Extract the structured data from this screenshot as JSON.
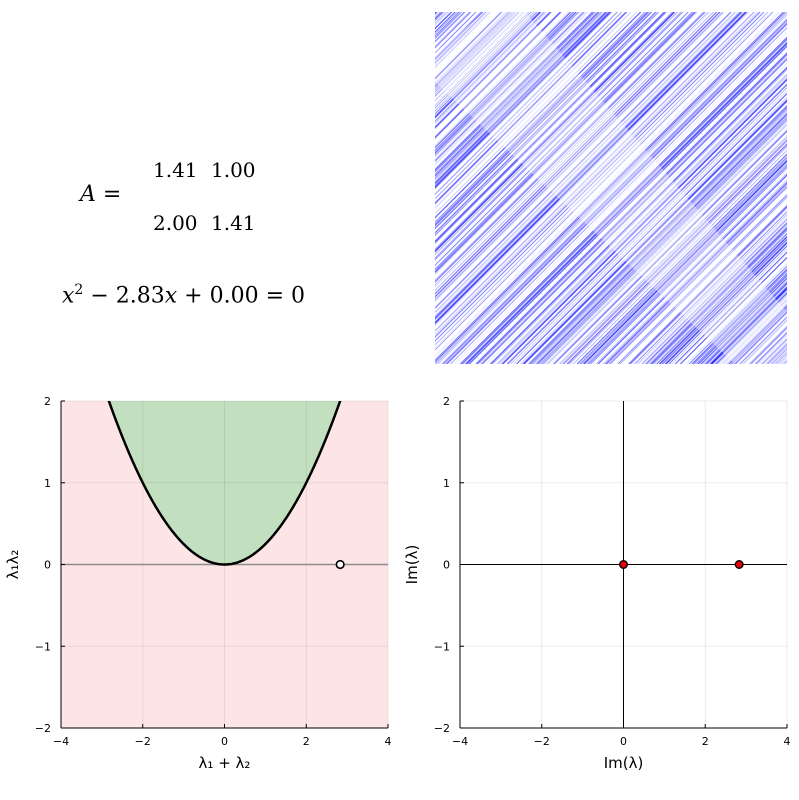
{
  "matrix": {
    "name": "A",
    "equals": "=",
    "rows": [
      [
        "1.41",
        "1.00"
      ],
      [
        "2.00",
        "1.41"
      ]
    ]
  },
  "equation": {
    "var": "x",
    "exp": "2",
    "middle": " − 2.83",
    "end": " + 0.00 = 0"
  },
  "colors": {
    "stripe": "#0000ff",
    "stable_region": "#c2e0c0",
    "unstable_region": "#fde5e6",
    "curve": "#000000",
    "eigen_point": "#e8000b",
    "axis_line": "#8c8c8c"
  },
  "chart_data": [
    {
      "type": "scatter",
      "title": "",
      "xlabel": "λ₁ + λ₂",
      "ylabel": "λ₁λ₂",
      "xlim": [
        -4,
        4
      ],
      "ylim": [
        -2,
        2
      ],
      "xticks": [
        -4,
        -2,
        0,
        2,
        4
      ],
      "yticks": [
        -2,
        -1,
        0,
        1,
        2
      ],
      "grid": true,
      "curve": {
        "equation": "y = x^2 / 4",
        "x_range": [
          -2.83,
          2.83
        ]
      },
      "regions": [
        {
          "name": "above curve",
          "color": "#c2e0c0"
        },
        {
          "name": "below curve",
          "color": "#fde5e6"
        }
      ],
      "points": [
        {
          "x": 2.83,
          "y": 0.0,
          "fill": "#ffffff"
        }
      ]
    },
    {
      "type": "scatter",
      "title": "",
      "xlabel": "Im(λ)",
      "ylabel": "Im(λ)",
      "xlim": [
        -4,
        4
      ],
      "ylim": [
        -2,
        2
      ],
      "xticks": [
        -4,
        -2,
        0,
        2,
        4
      ],
      "yticks": [
        -2,
        -1,
        0,
        1,
        2
      ],
      "grid": true,
      "points": [
        {
          "x": 0.0,
          "y": 0.0,
          "fill": "#e8000b"
        },
        {
          "x": 2.83,
          "y": 0.0,
          "fill": "#e8000b"
        }
      ]
    }
  ]
}
